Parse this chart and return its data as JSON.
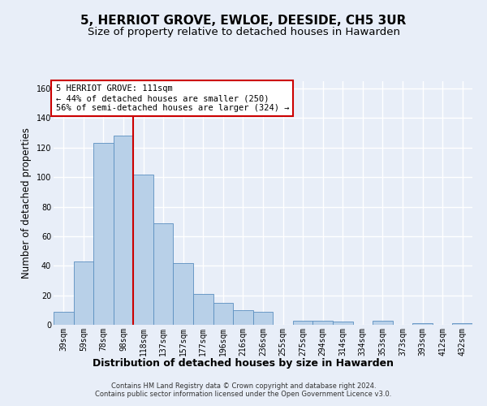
{
  "title": "5, HERRIOT GROVE, EWLOE, DEESIDE, CH5 3UR",
  "subtitle": "Size of property relative to detached houses in Hawarden",
  "xlabel": "Distribution of detached houses by size in Hawarden",
  "ylabel": "Number of detached properties",
  "categories": [
    "39sqm",
    "59sqm",
    "78sqm",
    "98sqm",
    "118sqm",
    "137sqm",
    "157sqm",
    "177sqm",
    "196sqm",
    "216sqm",
    "236sqm",
    "255sqm",
    "275sqm",
    "294sqm",
    "314sqm",
    "334sqm",
    "353sqm",
    "373sqm",
    "393sqm",
    "412sqm",
    "432sqm"
  ],
  "values": [
    9,
    43,
    123,
    128,
    102,
    69,
    42,
    21,
    15,
    10,
    9,
    0,
    3,
    3,
    2,
    0,
    3,
    0,
    1,
    0,
    1
  ],
  "bar_color": "#b8d0e8",
  "bar_edge_color": "#5a8fc0",
  "marker_index": 4,
  "ylim": [
    0,
    165
  ],
  "yticks": [
    0,
    20,
    40,
    60,
    80,
    100,
    120,
    140,
    160
  ],
  "vline_color": "#cc0000",
  "annotation_text": "5 HERRIOT GROVE: 111sqm\n← 44% of detached houses are smaller (250)\n56% of semi-detached houses are larger (324) →",
  "annotation_box_color": "#ffffff",
  "annotation_box_edge": "#cc0000",
  "footer": "Contains HM Land Registry data © Crown copyright and database right 2024.\nContains public sector information licensed under the Open Government Licence v3.0.",
  "bg_color": "#e8eef8",
  "plot_bg_color": "#e8eef8",
  "grid_color": "#ffffff",
  "title_fontsize": 11,
  "subtitle_fontsize": 9.5,
  "ylabel_fontsize": 8.5,
  "xlabel_fontsize": 9,
  "tick_fontsize": 7,
  "annotation_fontsize": 7.5,
  "footer_fontsize": 6
}
